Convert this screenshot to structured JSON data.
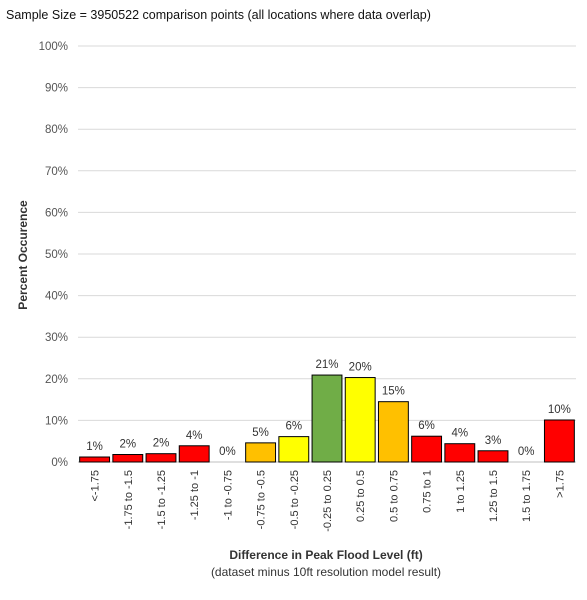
{
  "note": "Sample Size = 3950522 comparison points (all locations where data overlap)",
  "chart_data": {
    "type": "bar",
    "title": "",
    "xlabel": "Difference in Peak Flood Level (ft)",
    "xlabel_sub": "(dataset minus 10ft resolution model result)",
    "ylabel": "Percent Occurence",
    "ylim": [
      0,
      100
    ],
    "yticks": [
      "0%",
      "10%",
      "20%",
      "30%",
      "40%",
      "50%",
      "60%",
      "70%",
      "80%",
      "90%",
      "100%"
    ],
    "grid": true,
    "categories": [
      "<-1.75",
      "-1.75 to -1.5",
      "-1.5 to -1.25",
      "-1.25 to -1",
      "-1 to -0.75",
      "-0.75 to -0.5",
      "-0.5 to -0.25",
      "-0.25 to 0.25",
      "0.25 to 0.5",
      "0.5 to 0.75",
      "0.75 to 1",
      "1 to 1.25",
      "1.25 to 1.5",
      "1.5 to 1.75",
      ">1.75"
    ],
    "values": [
      1.2,
      1.8,
      2.0,
      3.9,
      0.0,
      4.6,
      6.1,
      20.9,
      20.3,
      14.5,
      6.2,
      4.4,
      2.7,
      0.0,
      10.1
    ],
    "data_labels": [
      "1%",
      "2%",
      "2%",
      "4%",
      "0%",
      "5%",
      "6%",
      "21%",
      "20%",
      "15%",
      "6%",
      "4%",
      "3%",
      "0%",
      "10%"
    ],
    "colors": [
      "#ff0000",
      "#ff0000",
      "#ff0000",
      "#ff0000",
      "#ff0000",
      "#ffc000",
      "#ffff00",
      "#70ad47",
      "#ffff00",
      "#ffc000",
      "#ff0000",
      "#ff0000",
      "#ff0000",
      "#ff0000",
      "#ff0000"
    ]
  }
}
